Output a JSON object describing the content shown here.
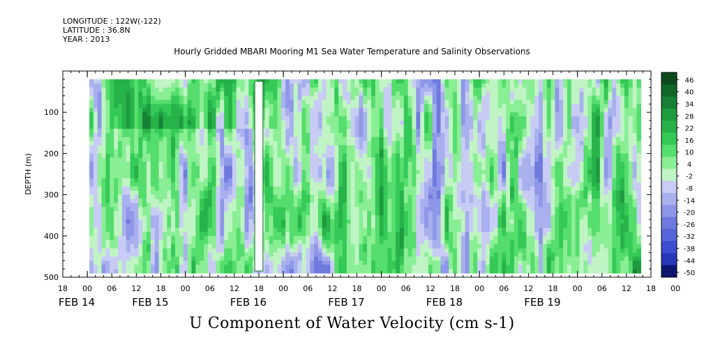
{
  "header": {
    "longitude": "LONGITUDE : 122W(-122)",
    "latitude": "LATITUDE : 36.8N",
    "year": "YEAR : 2013",
    "title": "Hourly Gridded MBARI Mooring M1 Sea Water Temperature and Salinity Observations"
  },
  "footer": {
    "variable_title": "U Component of Water Velocity (cm s-1)"
  },
  "chart_data": {
    "type": "heatmap",
    "title": "Hourly Gridded MBARI Mooring M1 Sea Water Temperature and Salinity Observations",
    "subtitle": "U Component of Water Velocity (cm s-1)",
    "ylabel": "DEPTH (m)",
    "xlabel": "",
    "y_axis": {
      "range": [
        500,
        0
      ],
      "inverted": true,
      "ticks": [
        100,
        200,
        300,
        400,
        500
      ]
    },
    "x_axis": {
      "range_hours": [
        -6,
        138
      ],
      "hour_tick_labels": [
        "18",
        "00",
        "06",
        "12",
        "18",
        "00",
        "06",
        "12",
        "18",
        "00",
        "06",
        "12",
        "18",
        "00",
        "06",
        "12",
        "18",
        "00",
        "06",
        "12",
        "18",
        "00",
        "06",
        "12",
        "18",
        "00"
      ],
      "day_labels": [
        "FEB 14",
        "FEB 15",
        "FEB 16",
        "FEB 17",
        "FEB 18",
        "FEB 19"
      ],
      "day_label_hours": [
        -6,
        12,
        36,
        60,
        84,
        108
      ]
    },
    "data_extent": {
      "x_hours": [
        0.5,
        135.5
      ],
      "depth_m": [
        20,
        485
      ]
    },
    "colorbar": {
      "labels": [
        "46",
        "40",
        "34",
        "28",
        "22",
        "16",
        "10",
        "4",
        "-2",
        "-8",
        "-14",
        "-20",
        "-26",
        "-32",
        "-38",
        "-44",
        "-50"
      ],
      "min": -50,
      "max": 49,
      "step": 3
    },
    "features": {
      "gap_hours": [
        41,
        43
      ],
      "dominant_low_band_hours": [
        60,
        80
      ]
    },
    "grid": false,
    "legend": "right"
  }
}
